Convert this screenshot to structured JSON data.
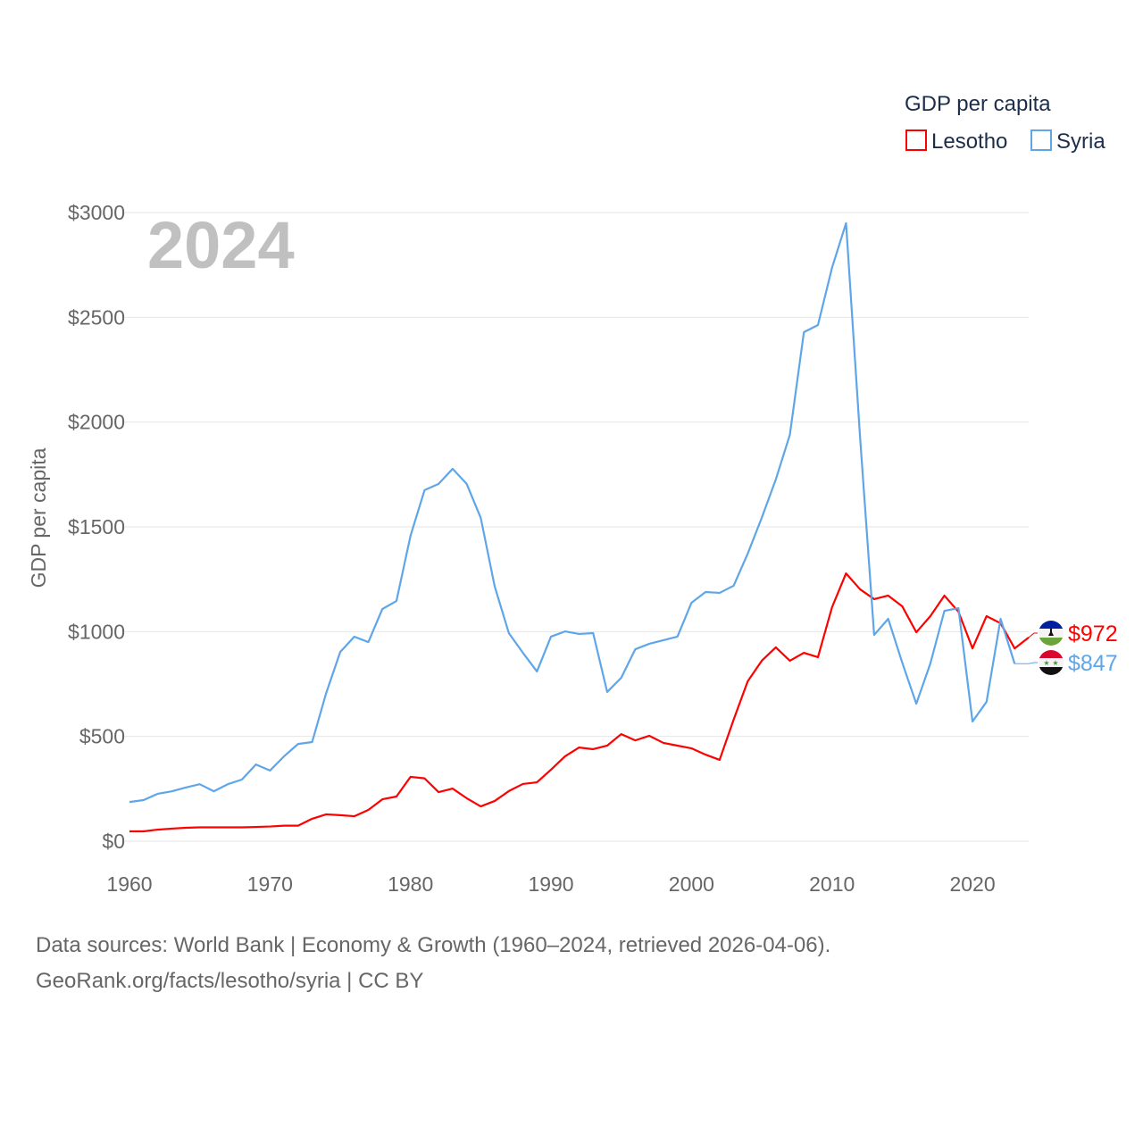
{
  "chart_data": {
    "type": "line",
    "title": "2024",
    "xlabel": "",
    "ylabel": "GDP per capita",
    "xlim": [
      1960,
      2024
    ],
    "ylim": [
      0,
      3000
    ],
    "grid": true,
    "x_ticks": [
      1960,
      1970,
      1980,
      1990,
      2000,
      2010,
      2020
    ],
    "x_tick_labels": [
      "1960",
      "1970",
      "1980",
      "1990",
      "2000",
      "2010",
      "2020"
    ],
    "y_ticks": [
      0,
      500,
      1000,
      1500,
      2000,
      2500,
      3000
    ],
    "y_tick_labels": [
      "$0",
      "$500",
      "$1000",
      "$1500",
      "$2000",
      "$2500",
      "$3000"
    ],
    "legend": {
      "title": "GDP per capita",
      "position": "top-right"
    },
    "series": [
      {
        "name": "Lesotho",
        "color": "#ff0000",
        "start_year": 1960,
        "end_label": "$972",
        "flag": "lesotho-flag",
        "values": [
          47,
          47,
          55,
          60,
          64,
          66,
          66,
          66,
          66,
          68,
          70,
          74,
          74,
          107,
          128,
          124,
          119,
          149,
          200,
          213,
          307,
          300,
          234,
          251,
          205,
          166,
          192,
          239,
          273,
          281,
          341,
          405,
          447,
          439,
          456,
          511,
          481,
          503,
          469,
          456,
          443,
          413,
          388,
          580,
          763,
          861,
          925,
          861,
          899,
          878,
          1116,
          1278,
          1202,
          1155,
          1172,
          1121,
          997,
          1074,
          1172,
          1095,
          920,
          1074,
          1040,
          920,
          972
        ]
      },
      {
        "name": "Syria",
        "color": "#5ea6e8",
        "start_year": 1960,
        "end_label": "$847",
        "flag": "syria-flag",
        "values": [
          187,
          196,
          226,
          238,
          256,
          272,
          238,
          272,
          294,
          366,
          337,
          405,
          464,
          473,
          707,
          903,
          976,
          950,
          1108,
          1146,
          1457,
          1675,
          1705,
          1777,
          1705,
          1543,
          1214,
          993,
          899,
          810,
          976,
          1001,
          989,
          993,
          712,
          780,
          916,
          942,
          959,
          976,
          1138,
          1189,
          1185,
          1219,
          1372,
          1543,
          1726,
          1939,
          2429,
          2463,
          2736,
          2949,
          1926,
          984,
          1061,
          852,
          656,
          848,
          1099,
          1112,
          571,
          665,
          1061,
          847
        ]
      }
    ]
  },
  "footer": {
    "line1": "Data sources: World Bank | Economy & Growth (1960–2024, retrieved 2026-04-06).",
    "line2": "GeoRank.org/facts/lesotho/syria | CC BY"
  }
}
